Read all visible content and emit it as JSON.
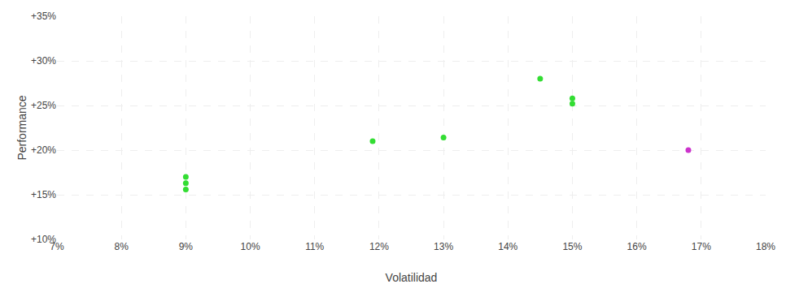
{
  "chart_data": {
    "type": "scatter",
    "xlabel": "Volatilidad",
    "ylabel": "Performance",
    "series": [
      {
        "color": "#33dd33",
        "x": [
          0.09,
          0.09,
          0.09,
          0.119,
          0.13,
          0.145,
          0.15,
          0.15
        ],
        "values": [
          0.17,
          0.163,
          0.156,
          0.21,
          0.214,
          0.28,
          0.258,
          0.252
        ]
      },
      {
        "color": "#cc33cc",
        "x": [
          0.168
        ],
        "values": [
          0.2
        ]
      }
    ],
    "xlim": [
      0.07,
      0.18
    ],
    "ylim": [
      0.1,
      0.35
    ],
    "xticks": [
      {
        "value": 0.07,
        "label": "7%"
      },
      {
        "value": 0.08,
        "label": "8%"
      },
      {
        "value": 0.09,
        "label": "9%"
      },
      {
        "value": 0.1,
        "label": "10%"
      },
      {
        "value": 0.11,
        "label": "11%"
      },
      {
        "value": 0.12,
        "label": "12%"
      },
      {
        "value": 0.13,
        "label": "13%"
      },
      {
        "value": 0.14,
        "label": "14%"
      },
      {
        "value": 0.15,
        "label": "15%"
      },
      {
        "value": 0.16,
        "label": "16%"
      },
      {
        "value": 0.17,
        "label": "17%"
      },
      {
        "value": 0.18,
        "label": "18%"
      }
    ],
    "yticks": [
      {
        "value": 0.1,
        "label": "+10%"
      },
      {
        "value": 0.15,
        "label": "+15%"
      },
      {
        "value": 0.2,
        "label": "+20%"
      },
      {
        "value": 0.25,
        "label": "+25%"
      },
      {
        "value": 0.3,
        "label": "+30%"
      },
      {
        "value": 0.35,
        "label": "+35%"
      }
    ],
    "grid": true
  }
}
